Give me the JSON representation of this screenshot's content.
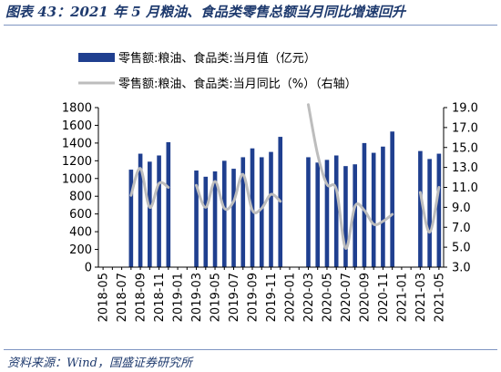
{
  "figure": {
    "title": "图表 43：2021 年 5 月粮油、食品类零售总额当月同比增速回升",
    "source": "资料来源：Wind，国盛证券研究所"
  },
  "chart_data": {
    "type": "bar",
    "legend_position": "top",
    "grid": false,
    "categories": [
      "2018-05",
      "2018-06",
      "2018-07",
      "2018-08",
      "2018-09",
      "2018-10",
      "2018-11",
      "2018-12",
      "2019-01",
      "2019-02",
      "2019-03",
      "2019-04",
      "2019-05",
      "2019-06",
      "2019-07",
      "2019-08",
      "2019-09",
      "2019-10",
      "2019-11",
      "2019-12",
      "2020-01",
      "2020-02",
      "2020-03",
      "2020-04",
      "2020-05",
      "2020-06",
      "2020-07",
      "2020-08",
      "2020-09",
      "2020-10",
      "2020-11",
      "2020-12",
      "2021-01",
      "2021-02",
      "2021-03",
      "2021-04",
      "2021-05"
    ],
    "x_tick_labels": [
      "2018-05",
      "2018-07",
      "2018-09",
      "2018-11",
      "2019-01",
      "2019-03",
      "2019-05",
      "2019-07",
      "2019-09",
      "2019-11",
      "2020-01",
      "2020-03",
      "2020-05",
      "2020-07",
      "2020-09",
      "2020-11",
      "2021-01",
      "2021-03",
      "2021-05"
    ],
    "series": [
      {
        "name": "零售额:粮油、食品类:当月值（亿元）",
        "type": "bar",
        "axis": "left",
        "color": "#1f3f8f",
        "values": [
          null,
          null,
          null,
          1100,
          1280,
          1190,
          1260,
          1410,
          null,
          null,
          1090,
          1020,
          1080,
          1200,
          1110,
          1240,
          1340,
          1240,
          1300,
          1470,
          null,
          null,
          1240,
          1180,
          1210,
          1260,
          1140,
          1160,
          1400,
          1290,
          1360,
          1530,
          null,
          null,
          1310,
          1220,
          1280
        ]
      },
      {
        "name": "零售额:粮油、食品类:当月同比（%）（右轴）",
        "type": "line",
        "axis": "right",
        "color": "#bdbdbd",
        "values": [
          null,
          null,
          null,
          10.2,
          12.9,
          9.0,
          11.4,
          11.0,
          null,
          null,
          11.2,
          9.0,
          11.6,
          8.9,
          9.6,
          12.3,
          8.7,
          8.9,
          10.3,
          9.6,
          null,
          null,
          19.3,
          14.3,
          11.3,
          10.8,
          4.9,
          9.1,
          8.7,
          7.3,
          7.6,
          8.3,
          null,
          null,
          10.5,
          6.5,
          11.0
        ]
      }
    ],
    "left_axis": {
      "ylim": [
        0,
        1800
      ],
      "ticks": [
        0,
        200,
        400,
        600,
        800,
        1000,
        1200,
        1400,
        1600,
        1800
      ]
    },
    "right_axis": {
      "ylim": [
        3.0,
        19.0
      ],
      "ticks": [
        "3.0",
        "5.0",
        "7.0",
        "9.0",
        "11.0",
        "13.0",
        "15.0",
        "17.0",
        "19.0"
      ]
    }
  }
}
